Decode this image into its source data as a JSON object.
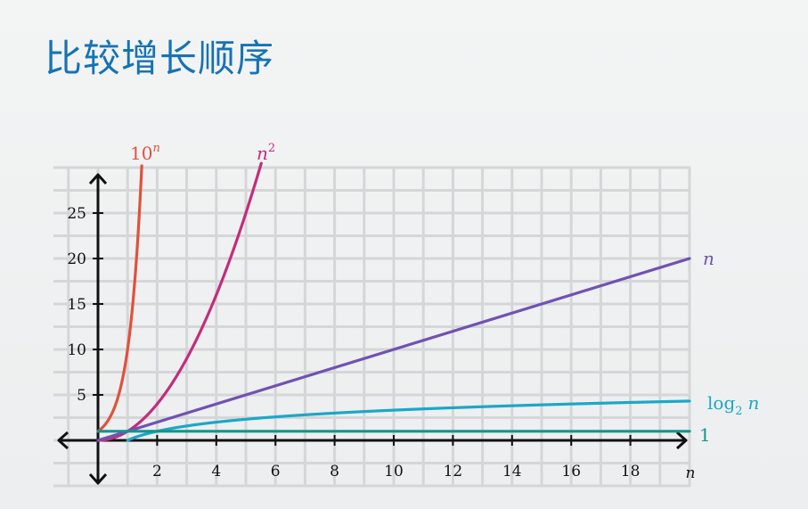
{
  "title": "比较增长顺序",
  "chart_data": {
    "type": "line",
    "xlabel": "n",
    "xlim": [
      -1.5,
      20
    ],
    "ylim": [
      -5,
      30
    ],
    "x_ticks": [
      2,
      4,
      6,
      8,
      10,
      12,
      14,
      16,
      18
    ],
    "y_ticks": [
      5,
      10,
      15,
      20,
      25
    ],
    "grid": true,
    "series": [
      {
        "name": "10",
        "sup": "n",
        "italic_base": false,
        "color": "#e0513c",
        "fn": "exp10"
      },
      {
        "name": "n",
        "sup": "2",
        "italic_base": true,
        "color": "#c32d7b",
        "fn": "square"
      },
      {
        "name": "n",
        "sup": "",
        "italic_base": true,
        "color": "#7052b2",
        "fn": "linear"
      },
      {
        "name": "log",
        "sub": "2",
        "suffix": "n",
        "color": "#1ba7c8",
        "fn": "log2"
      },
      {
        "name": "1",
        "sup": "",
        "italic_base": false,
        "color": "#12968a",
        "fn": "const"
      }
    ]
  }
}
